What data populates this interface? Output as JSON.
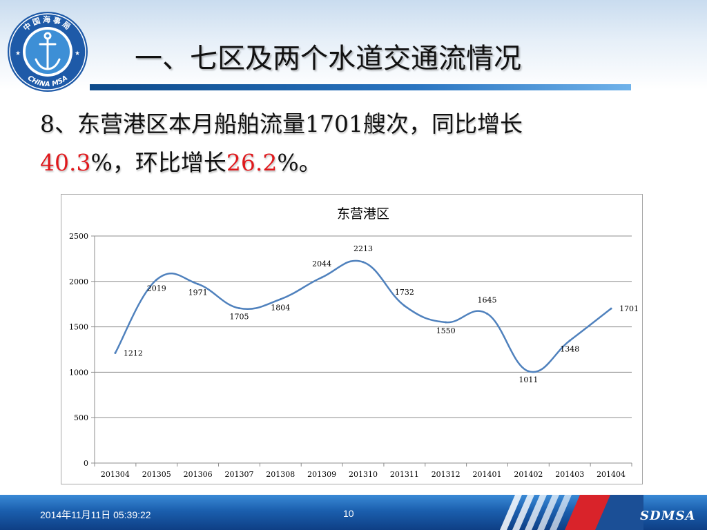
{
  "logo": {
    "top_text": "中国海事局",
    "bottom_text": "CHINA MSA",
    "icon": "anchor-emblem"
  },
  "page_title": "一、七区及两个水道交通流情况",
  "headline": {
    "line1": "8、东营港区本月船舶流量1701艘次，同比增长",
    "yoy_value": "40.3",
    "middle": "%，环比增长",
    "mom_value": "26.2",
    "end": "%。",
    "highlight_color": "#e0181c"
  },
  "chart_data": {
    "type": "line",
    "title": "东营港区",
    "xlabel": "",
    "ylabel": "",
    "categories": [
      "201304",
      "201305",
      "201306",
      "201307",
      "201308",
      "201309",
      "201310",
      "201311",
      "201312",
      "201401",
      "201402",
      "201403",
      "201404"
    ],
    "series": [
      {
        "values": [
          1212,
          2019,
          1971,
          1705,
          1804,
          2044,
          2213,
          1732,
          1550,
          1645,
          1011,
          1348,
          1701
        ],
        "color": "#4f81bd"
      }
    ],
    "yticks": [
      0,
      500,
      1000,
      1500,
      2000,
      2500
    ],
    "ylim": [
      0,
      2500
    ],
    "grid": true,
    "legend": "none",
    "smooth": true
  },
  "footer": {
    "date": "2014年11月11日  05:39:22",
    "page": "10",
    "brand": "SDMSA"
  }
}
